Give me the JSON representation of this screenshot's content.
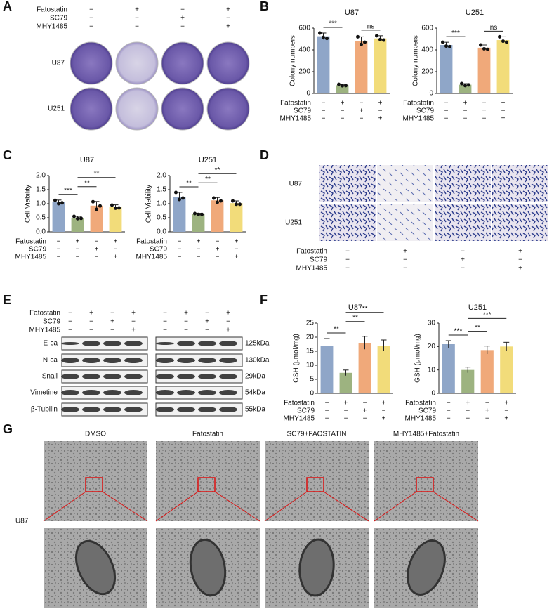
{
  "panel_labels": [
    "A",
    "B",
    "C",
    "D",
    "E",
    "F",
    "G"
  ],
  "panel_a": {
    "conditions": {
      "labels": [
        "Fatostatin",
        "SC79",
        "MHY1485"
      ],
      "signs": [
        [
          "−",
          "+",
          "−",
          "+"
        ],
        [
          "−",
          "−",
          "+",
          "−"
        ],
        [
          "−",
          "−",
          "−",
          "+"
        ]
      ]
    },
    "rows": [
      "U87",
      "U251"
    ]
  },
  "panel_d": {
    "conditions": {
      "labels": [
        "Fatostatin",
        "SC79",
        "MHY1485"
      ],
      "signs": [
        [
          "−",
          "+",
          "−",
          "+"
        ],
        [
          "−",
          "−",
          "+",
          "−"
        ],
        [
          "−",
          "−",
          "−",
          "+"
        ]
      ]
    },
    "rows": [
      "U87",
      "U251"
    ]
  },
  "panel_e": {
    "conditions": {
      "labels": [
        "Fatostatin",
        "SC79",
        "MHY1485"
      ],
      "signs": [
        [
          "−",
          "+",
          "−",
          "+",
          "−",
          "+",
          "−",
          "+"
        ],
        [
          "−",
          "−",
          "+",
          "−",
          "−",
          "−",
          "+",
          "−"
        ],
        [
          "−",
          "−",
          "−",
          "+",
          "−",
          "−",
          "−",
          "+"
        ]
      ]
    },
    "bands": [
      "E-ca",
      "N-ca",
      "Snail",
      "Vimetine",
      "β-Tubilin"
    ],
    "sizes": [
      "125kDa",
      "130kDa",
      "29kDa",
      "54kDa",
      "55kDa"
    ]
  },
  "panel_g": {
    "columns": [
      "DMSO",
      "Fatostatin",
      "SC79+FAOSTATIN",
      "MHY1485+Fatostatin"
    ],
    "row": "U87"
  },
  "chart_data": [
    {
      "type": "bar",
      "title": "U87",
      "ylabel": "Colony numbers",
      "colors": [
        "#8fa6c8",
        "#9db380",
        "#f0a97a",
        "#f2dc7a"
      ],
      "values": [
        525,
        75,
        480,
        505
      ],
      "errors": [
        30,
        8,
        40,
        25
      ],
      "points": [
        [
          555,
          515,
          505
        ],
        [
          83,
          70,
          72
        ],
        [
          520,
          450,
          470
        ],
        [
          530,
          495,
          490
        ]
      ],
      "ylim": [
        0,
        600
      ],
      "yticks": [
        0,
        200,
        400,
        600
      ],
      "comparisons": [
        {
          "groups": [
            0,
            1
          ],
          "label": "***"
        },
        {
          "groups": [
            2,
            3
          ],
          "label": "ns"
        }
      ],
      "conditions": {
        "labels": [
          "Fatostatin",
          "SC79",
          "MHY1485"
        ],
        "signs": [
          [
            "−",
            "+",
            "−",
            "+"
          ],
          [
            "−",
            "−",
            "+",
            "−"
          ],
          [
            "−",
            "−",
            "−",
            "+"
          ]
        ]
      }
    },
    {
      "type": "bar",
      "title": "U251",
      "ylabel": "Colony numbers",
      "colors": [
        "#8fa6c8",
        "#9db380",
        "#f0a97a",
        "#f2dc7a"
      ],
      "values": [
        445,
        80,
        420,
        490
      ],
      "errors": [
        25,
        10,
        25,
        30
      ],
      "points": [
        [
          470,
          435,
          430
        ],
        [
          90,
          72,
          78
        ],
        [
          445,
          410,
          405
        ],
        [
          520,
          480,
          470
        ]
      ],
      "ylim": [
        0,
        600
      ],
      "yticks": [
        0,
        200,
        400,
        600
      ],
      "comparisons": [
        {
          "groups": [
            0,
            1
          ],
          "label": "***"
        },
        {
          "groups": [
            2,
            3
          ],
          "label": "ns"
        }
      ],
      "conditions": {
        "labels": [
          "Fatostatin",
          "SC79",
          "MHY1485"
        ],
        "signs": [
          [
            "−",
            "+",
            "−",
            "+"
          ],
          [
            "−",
            "−",
            "+",
            "−"
          ],
          [
            "−",
            "−",
            "−",
            "+"
          ]
        ]
      }
    },
    {
      "type": "bar",
      "title": "U87",
      "ylabel": "Cell Viability",
      "colors": [
        "#8fa6c8",
        "#9db380",
        "#f0a97a",
        "#f2dc7a"
      ],
      "values": [
        1.05,
        0.5,
        0.93,
        0.88
      ],
      "errors": [
        0.08,
        0.05,
        0.15,
        0.08
      ],
      "points": [
        [
          1.12,
          1.0,
          1.03
        ],
        [
          0.55,
          0.47,
          0.48
        ],
        [
          1.07,
          0.8,
          0.92
        ],
        [
          0.95,
          0.84,
          0.85
        ]
      ],
      "ylim": [
        0,
        2
      ],
      "yticks": [
        {
          "value": 0,
          "label": "0.0"
        },
        0.5,
        {
          "value": 1,
          "label": "1.0"
        },
        1.5,
        {
          "value": 2,
          "label": "2.0"
        }
      ],
      "comparisons": [
        {
          "groups": [
            0,
            1
          ],
          "label": "***"
        },
        {
          "groups": [
            1,
            2
          ],
          "label": "**"
        },
        {
          "groups": [
            1,
            3
          ],
          "label": "**"
        }
      ],
      "conditions": {
        "labels": [
          "Fatostatin",
          "SC79",
          "MHY1485"
        ],
        "signs": [
          [
            "−",
            "+",
            "−",
            "+"
          ],
          [
            "−",
            "−",
            "+",
            "−"
          ],
          [
            "−",
            "−",
            "−",
            "+"
          ]
        ]
      }
    },
    {
      "type": "bar",
      "title": "U251",
      "ylabel": "Cell Viability",
      "colors": [
        "#8fa6c8",
        "#9db380",
        "#f0a97a",
        "#f2dc7a"
      ],
      "values": [
        1.25,
        0.63,
        1.12,
        1.02
      ],
      "errors": [
        0.15,
        0.03,
        0.1,
        0.08
      ],
      "points": [
        [
          1.4,
          1.15,
          1.2
        ],
        [
          0.65,
          0.62,
          0.62
        ],
        [
          1.2,
          1.05,
          1.1
        ],
        [
          1.1,
          0.98,
          0.98
        ]
      ],
      "ylim": [
        0,
        2
      ],
      "yticks": [
        {
          "value": 0,
          "label": "0.0"
        },
        0.5,
        {
          "value": 1,
          "label": "1.0"
        },
        1.5,
        {
          "value": 2,
          "label": "2.0"
        }
      ],
      "comparisons": [
        {
          "groups": [
            0,
            1
          ],
          "label": "**"
        },
        {
          "groups": [
            1,
            2
          ],
          "label": "**"
        },
        {
          "groups": [
            1,
            3
          ],
          "label": "**"
        }
      ],
      "conditions": {
        "labels": [
          "Fatostatin",
          "SC79",
          "MHY1485"
        ],
        "signs": [
          [
            "−",
            "+",
            "−",
            "+"
          ],
          [
            "−",
            "−",
            "+",
            "−"
          ],
          [
            "−",
            "−",
            "−",
            "+"
          ]
        ]
      }
    },
    {
      "type": "bar",
      "title": "U87",
      "ylabel": "GSH (μmol/mg)",
      "colors": [
        "#8fa6c8",
        "#9db380",
        "#f0a97a",
        "#f2dc7a"
      ],
      "values": [
        17,
        7.3,
        18,
        17
      ],
      "errors": [
        2.5,
        1,
        2.3,
        2
      ],
      "ylim": [
        0,
        25
      ],
      "yticks": [
        0,
        5,
        10,
        15,
        20,
        25
      ],
      "comparisons": [
        {
          "groups": [
            0,
            1
          ],
          "label": "**"
        },
        {
          "groups": [
            1,
            2
          ],
          "label": "**"
        },
        {
          "groups": [
            1,
            3
          ],
          "label": "**"
        }
      ],
      "conditions": {
        "labels": [
          "Fatostatin",
          "SC79",
          "MHY1485"
        ],
        "signs": [
          [
            "−",
            "+",
            "−",
            "+"
          ],
          [
            "−",
            "−",
            "+",
            "−"
          ],
          [
            "−",
            "−",
            "−",
            "+"
          ]
        ]
      }
    },
    {
      "type": "bar",
      "title": "U251",
      "ylabel": "GSH (μmol/mg)",
      "colors": [
        "#8fa6c8",
        "#9db380",
        "#f0a97a",
        "#f2dc7a"
      ],
      "values": [
        21,
        10,
        18.5,
        20
      ],
      "errors": [
        1.5,
        1.2,
        1.7,
        1.8
      ],
      "ylim": [
        0,
        30
      ],
      "yticks": [
        0,
        10,
        20,
        30
      ],
      "comparisons": [
        {
          "groups": [
            0,
            1
          ],
          "label": "***"
        },
        {
          "groups": [
            1,
            2
          ],
          "label": "**"
        },
        {
          "groups": [
            1,
            3
          ],
          "label": "***"
        }
      ],
      "conditions": {
        "labels": [
          "Fatostatin",
          "SC79",
          "MHY1485"
        ],
        "signs": [
          [
            "−",
            "+",
            "−",
            "+"
          ],
          [
            "−",
            "−",
            "+",
            "−"
          ],
          [
            "−",
            "−",
            "−",
            "+"
          ]
        ]
      }
    }
  ]
}
